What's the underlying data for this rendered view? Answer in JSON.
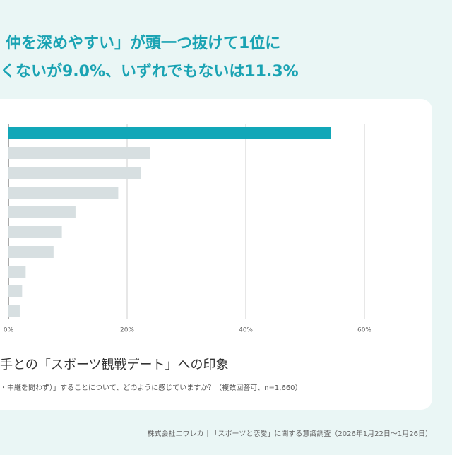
{
  "headline": [
    "仲を深めやすい」が頭一つ抜けて1位に",
    "くないが9.0%、いずれでもないは11.3%"
  ],
  "chart_data": {
    "type": "bar",
    "orientation": "horizontal",
    "title": "手との「スポーツ観戦デート」への印象",
    "subtitle": "・中継を問わず）」することについて、どのように感じていますか？（複数回答可、n=1,660）",
    "categories": [
      null,
      null,
      null,
      null,
      null,
      null,
      null,
      null,
      null,
      null
    ],
    "values": [
      54.4,
      23.9,
      22.3,
      18.5,
      11.3,
      9.0,
      7.6,
      2.9,
      2.3,
      1.9
    ],
    "colors": [
      "#12a7b8",
      "#d7dfe1",
      "#d7dfe1",
      "#d7dfe1",
      "#d7dfe1",
      "#d7dfe1",
      "#d7dfe1",
      "#d7dfe1",
      "#d7dfe1",
      "#d7dfe1"
    ],
    "xlim": [
      0,
      60
    ],
    "xticks": [
      {
        "value": 0,
        "label": "0%"
      },
      {
        "value": 20,
        "label": "20%"
      },
      {
        "value": 40,
        "label": "40%"
      },
      {
        "value": 60,
        "label": "60%"
      }
    ],
    "grid": true
  },
  "footer": "株式会社エウレカ｜「スポーツと恋愛」に関する意識調査（2026年1月22日〜1月26日）"
}
